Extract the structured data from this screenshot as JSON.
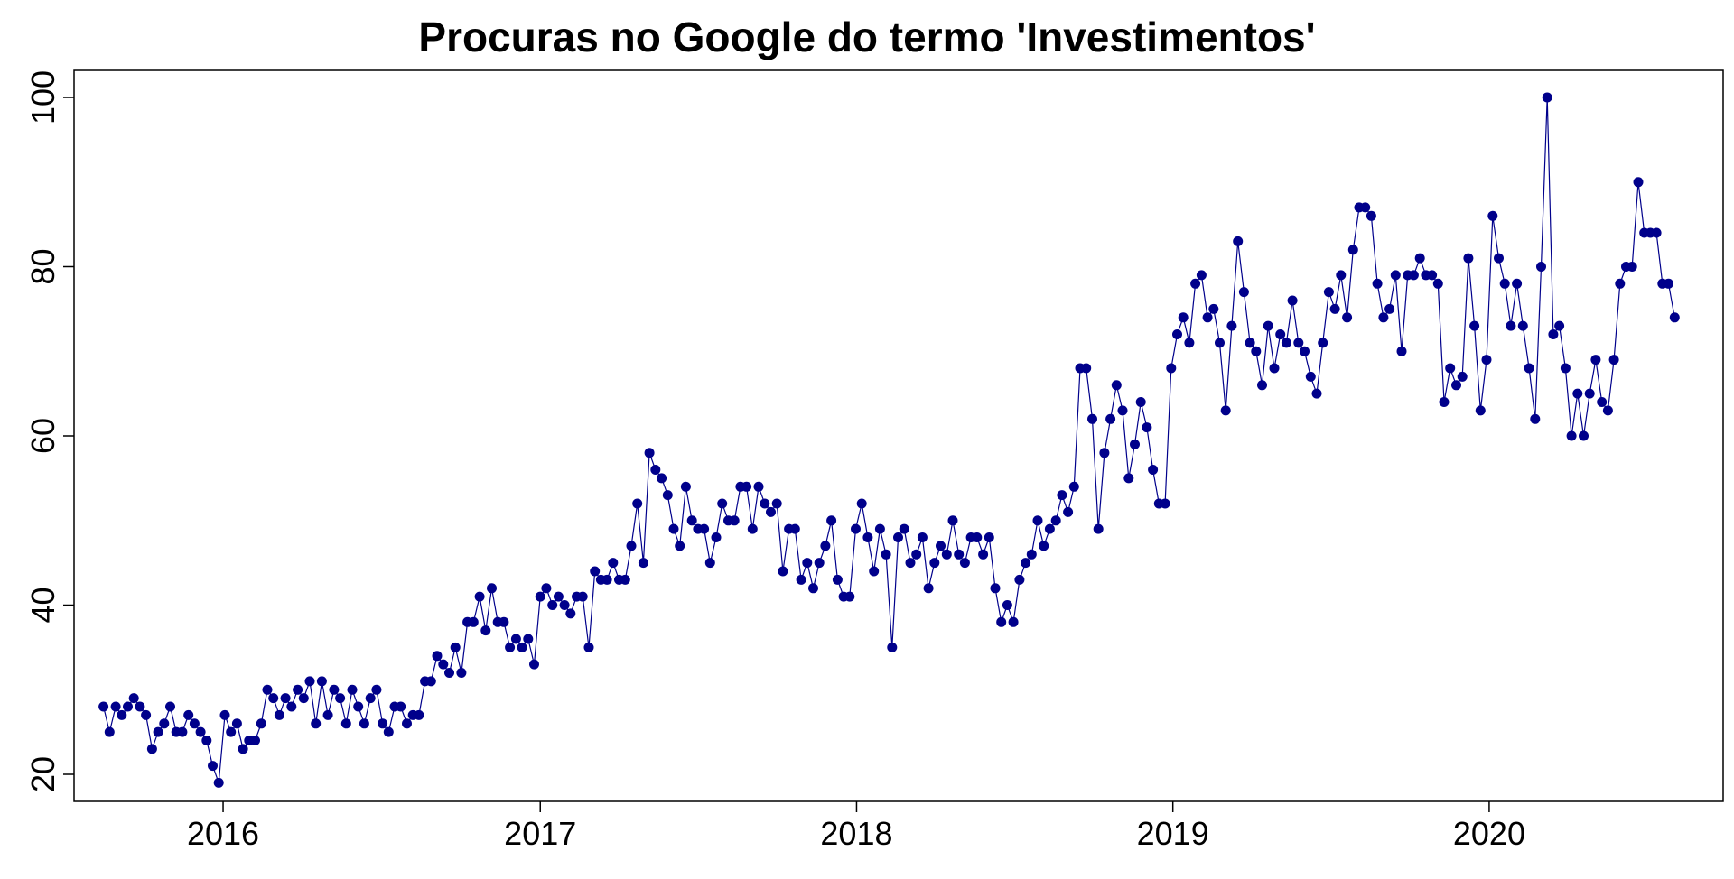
{
  "chart_data": {
    "type": "line",
    "title": "Procuras no Google do termo 'Investimentos'",
    "xlabel": "",
    "ylabel": "",
    "x_axis": {
      "type": "date",
      "start": "2015-08-16",
      "frequency": "weekly",
      "ticks": [
        "2016",
        "2017",
        "2018",
        "2019",
        "2020"
      ],
      "xlim": [
        "2015-07-13",
        "2020-09-27"
      ]
    },
    "y_axis": {
      "ticks": [
        "20",
        "40",
        "60",
        "80",
        "100"
      ],
      "ylim": [
        16.8,
        103.2
      ]
    },
    "grid": false,
    "legend": "none",
    "series": [
      {
        "color": "#00008B",
        "marker": "filled-circle",
        "values": [
          28,
          25,
          28,
          27,
          28,
          29,
          28,
          27,
          23,
          25,
          26,
          28,
          25,
          25,
          27,
          26,
          25,
          24,
          21,
          19,
          27,
          25,
          26,
          23,
          24,
          24,
          26,
          30,
          29,
          27,
          29,
          28,
          30,
          29,
          31,
          26,
          31,
          27,
          30,
          29,
          26,
          30,
          28,
          26,
          29,
          30,
          26,
          25,
          28,
          28,
          26,
          27,
          27,
          31,
          31,
          34,
          33,
          32,
          35,
          32,
          38,
          38,
          41,
          37,
          42,
          38,
          38,
          35,
          36,
          35,
          36,
          33,
          41,
          42,
          40,
          41,
          40,
          39,
          41,
          41,
          35,
          44,
          43,
          43,
          45,
          43,
          43,
          47,
          52,
          45,
          58,
          56,
          55,
          53,
          49,
          47,
          54,
          50,
          49,
          49,
          45,
          48,
          52,
          50,
          50,
          54,
          54,
          49,
          54,
          52,
          51,
          52,
          44,
          49,
          49,
          43,
          45,
          42,
          45,
          47,
          50,
          43,
          41,
          41,
          49,
          52,
          48,
          44,
          49,
          46,
          35,
          48,
          49,
          45,
          46,
          48,
          42,
          45,
          47,
          46,
          50,
          46,
          45,
          48,
          48,
          46,
          48,
          42,
          38,
          40,
          38,
          43,
          45,
          46,
          50,
          47,
          49,
          50,
          53,
          51,
          54,
          68,
          68,
          62,
          49,
          58,
          62,
          66,
          63,
          55,
          59,
          64,
          61,
          56,
          52,
          52,
          68,
          72,
          74,
          71,
          78,
          79,
          74,
          75,
          71,
          63,
          73,
          83,
          77,
          71,
          70,
          66,
          73,
          68,
          72,
          71,
          76,
          71,
          70,
          67,
          65,
          71,
          77,
          75,
          79,
          74,
          82,
          87,
          87,
          86,
          78,
          74,
          75,
          79,
          70,
          79,
          79,
          81,
          79,
          79,
          78,
          64,
          68,
          66,
          67,
          81,
          73,
          63,
          69,
          86,
          81,
          78,
          73,
          78,
          73,
          68,
          62,
          80,
          100,
          72,
          73,
          68,
          60,
          65,
          60,
          65,
          69,
          64,
          63,
          69,
          78,
          80,
          80,
          90,
          84,
          84,
          84,
          78,
          78,
          74
        ]
      }
    ]
  }
}
